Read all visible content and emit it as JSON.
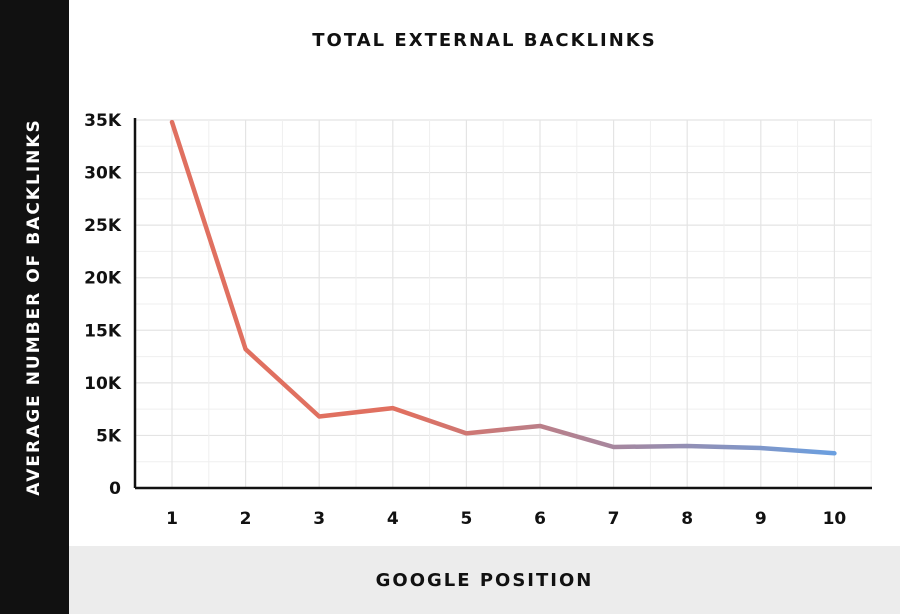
{
  "chart_data": {
    "type": "line",
    "title": "TOTAL EXTERNAL BACKLINKS",
    "xlabel": "GOOGLE POSITION",
    "ylabel": "AVERAGE NUMBER OF BACKLINKS",
    "x": [
      1,
      2,
      3,
      4,
      5,
      6,
      7,
      8,
      9,
      10
    ],
    "series": [
      {
        "values": [
          34800,
          13200,
          6800,
          7600,
          5200,
          5900,
          3900,
          4000,
          3800,
          3300
        ]
      }
    ],
    "ylim": [
      0,
      35000
    ],
    "yticks": [
      0,
      5000,
      10000,
      15000,
      20000,
      25000,
      30000,
      35000
    ],
    "ytick_labels": [
      "0",
      "5K",
      "10K",
      "15K",
      "20K",
      "25K",
      "30K",
      "35K"
    ],
    "xtick_labels": [
      "1",
      "2",
      "3",
      "4",
      "5",
      "6",
      "7",
      "8",
      "9",
      "10"
    ],
    "grid": true,
    "line_gradient": [
      "#e07060",
      "#6a9fe0"
    ]
  }
}
